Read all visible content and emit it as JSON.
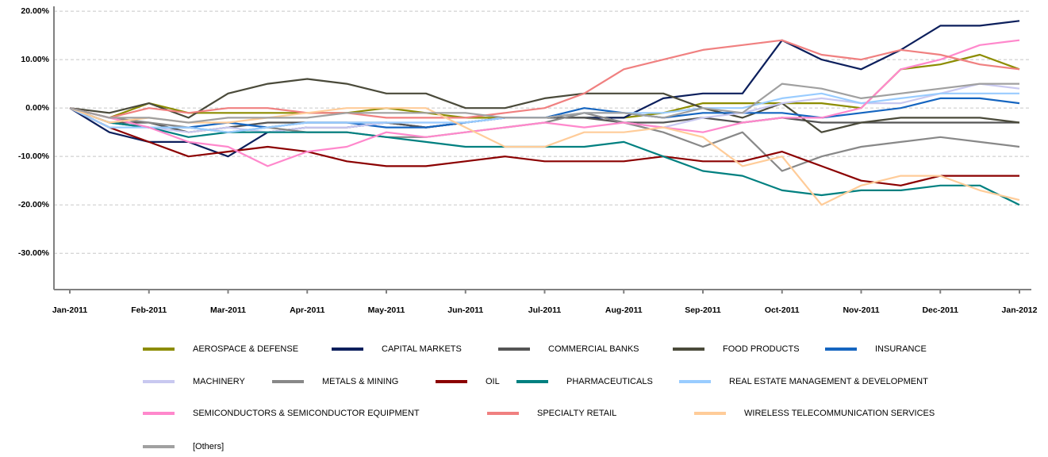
{
  "chart_data": {
    "type": "line",
    "categories": [
      "Jan-2011",
      null,
      "Feb-2011",
      null,
      "Mar-2011",
      null,
      "Apr-2011",
      null,
      "May-2011",
      null,
      "Jun-2011",
      null,
      "Jul-2011",
      null,
      "Aug-2011",
      null,
      "Sep-2011",
      null,
      "Oct-2011",
      null,
      "Nov-2011",
      null,
      "Dec-2011",
      null,
      "Jan-2012"
    ],
    "ylim": [
      -37.5,
      21
    ],
    "yticks": [
      {
        "value": 20,
        "label": "20.00%"
      },
      {
        "value": 10,
        "label": "10.00%"
      },
      {
        "value": 0,
        "label": "0.00%"
      },
      {
        "value": -10,
        "label": "-10.00%"
      },
      {
        "value": -20,
        "label": "-20.00%"
      },
      {
        "value": -30,
        "label": "-30.00%"
      }
    ],
    "grid": true,
    "series": [
      {
        "name": "AEROSPACE & DEFENSE",
        "color": "#8c8c00",
        "values": [
          0,
          -2,
          1,
          -1,
          -1,
          -1,
          -1,
          -1,
          0,
          -1,
          -2,
          -2,
          -2,
          -2,
          -2,
          -1,
          1,
          1,
          1,
          1,
          0,
          8,
          9,
          11,
          8
        ]
      },
      {
        "name": "CAPITAL MARKETS",
        "color": "#0c1f5c",
        "values": [
          0,
          -5,
          -7,
          -7,
          -10,
          -5,
          -4,
          -4,
          -3,
          -4,
          -3,
          -2,
          -2,
          -2,
          -2,
          2,
          3,
          3,
          14,
          10,
          8,
          12,
          17,
          17,
          18
        ]
      },
      {
        "name": "COMMERCIAL BANKS",
        "color": "#555555",
        "values": [
          0,
          -3,
          -3,
          -5,
          -4,
          -3,
          -3,
          -3,
          -3,
          -4,
          -3,
          -2,
          -2,
          -2,
          -3,
          -3,
          -2,
          -3,
          -2,
          -3,
          -3,
          -3,
          -3,
          -3,
          -3
        ]
      },
      {
        "name": "FOOD PRODUCTS",
        "color": "#4a4a3a",
        "values": [
          0,
          -1,
          1,
          -2,
          3,
          5,
          6,
          5,
          3,
          3,
          0,
          0,
          2,
          3,
          3,
          3,
          0,
          -2,
          1,
          -5,
          -3,
          -2,
          -2,
          -2,
          -3
        ]
      },
      {
        "name": "INSURANCE",
        "color": "#1565c0",
        "values": [
          0,
          -3,
          -4,
          -4,
          -3,
          -4,
          -3,
          -3,
          -4,
          -4,
          -3,
          -2,
          -2,
          0,
          -1,
          -2,
          -1,
          -1,
          -1,
          -2,
          -1,
          0,
          2,
          2,
          1
        ]
      },
      {
        "name": "MACHINERY",
        "color": "#c8c8f0",
        "values": [
          0,
          -3,
          -4,
          -5,
          -4,
          -5,
          -4,
          -4,
          -3,
          -3,
          -3,
          -2,
          -2,
          -1,
          -3,
          -4,
          -2,
          -1,
          1,
          2,
          1,
          1,
          3,
          5,
          4
        ]
      },
      {
        "name": "METALS & MINING",
        "color": "#888888",
        "values": [
          0,
          -2,
          -3,
          -4,
          -5,
          -4,
          -5,
          -5,
          -6,
          -6,
          -5,
          -4,
          -3,
          -1,
          -3,
          -5,
          -8,
          -5,
          -13,
          -10,
          -8,
          -7,
          -6,
          -7,
          -8
        ]
      },
      {
        "name": "OIL",
        "color": "#8b0000",
        "values": [
          0,
          -4,
          -7,
          -10,
          -9,
          -8,
          -9,
          -11,
          -12,
          -12,
          -11,
          -10,
          -11,
          -11,
          -11,
          -10,
          -11,
          -11,
          -9,
          -12,
          -15,
          -16,
          -14,
          -14,
          -14
        ]
      },
      {
        "name": "PHARMACEUTICALS",
        "color": "#008080",
        "values": [
          0,
          -3,
          -4,
          -6,
          -5,
          -5,
          -5,
          -5,
          -6,
          -7,
          -8,
          -8,
          -8,
          -8,
          -7,
          -10,
          -13,
          -14,
          -17,
          -18,
          -17,
          -17,
          -16,
          -16,
          -20
        ]
      },
      {
        "name": "REAL ESTATE MANAGEMENT & DEVELOPMENT",
        "color": "#99ccff",
        "values": [
          0,
          -4,
          -4,
          -4,
          -5,
          -4,
          -3,
          -3,
          -3,
          -3,
          -3,
          -2,
          -2,
          -1,
          -1,
          -1,
          0,
          0,
          2,
          3,
          1,
          2,
          3,
          3,
          3
        ]
      },
      {
        "name": "SEMICONDUCTORS & SEMICONDUCTOR EQUIPMENT",
        "color": "#ff88cc",
        "values": [
          0,
          -2,
          -4,
          -7,
          -8,
          -12,
          -9,
          -8,
          -5,
          -6,
          -5,
          -4,
          -3,
          -4,
          -3,
          -4,
          -5,
          -3,
          -2,
          -2,
          0,
          8,
          10,
          13,
          14
        ]
      },
      {
        "name": "SPECIALTY RETAIL",
        "color": "#f08080",
        "values": [
          0,
          -2,
          0,
          -1,
          0,
          0,
          -1,
          -1,
          -2,
          -2,
          -2,
          -1,
          0,
          3,
          8,
          10,
          12,
          13,
          14,
          11,
          10,
          12,
          11,
          9,
          8
        ]
      },
      {
        "name": "WIRELESS TELECOMMUNICATION SERVICES",
        "color": "#ffcc99",
        "values": [
          0,
          -3,
          -2,
          -3,
          -3,
          -2,
          -1,
          0,
          0,
          0,
          -4,
          -8,
          -8,
          -5,
          -5,
          -4,
          -6,
          -12,
          -10,
          -20,
          -16,
          -14,
          -14,
          -17,
          -19
        ]
      },
      {
        "name": "[Others]",
        "color": "#a0a0a0",
        "values": [
          0,
          -2,
          -2,
          -3,
          -2,
          -2,
          -2,
          -1,
          -1,
          -1,
          -1,
          -2,
          -2,
          -1,
          -1,
          -2,
          0,
          -1,
          5,
          4,
          2,
          3,
          4,
          5,
          5
        ]
      }
    ]
  }
}
